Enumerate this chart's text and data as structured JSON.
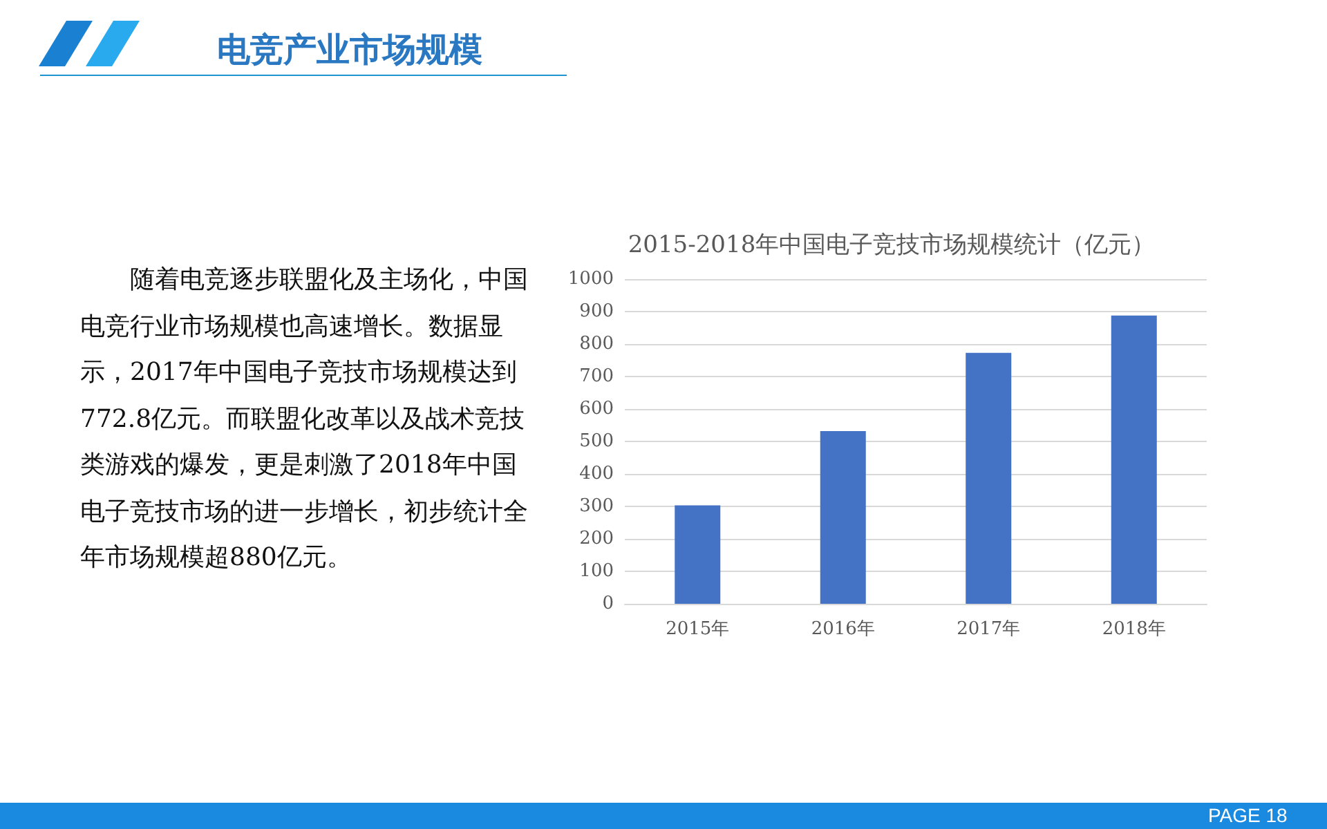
{
  "chart_data": {
    "type": "bar",
    "title": "2015-2018年中国电子竞技市场规模统计（亿元）",
    "categories": [
      "2015年",
      "2016年",
      "2017年",
      "2018年"
    ],
    "values": [
      303,
      532,
      773,
      888
    ],
    "color": "#4472c4",
    "ylim": [
      0,
      1000
    ],
    "yticks": [
      0,
      100,
      200,
      300,
      400,
      500,
      600,
      700,
      800,
      900,
      1000
    ],
    "grid": "y",
    "annotations": [
      "电竞产业市场规模",
      "随着电竞逐步联盟化及主场化，中国电竞行业市场规模也高速增长。数据显示，2017年中国电子竞技市场规模达到772.8亿元。而联盟化改革以及战术竞技类游戏的爆发，更是刺激了2018年中国电子竞技市场的进一步增长，初步统计全年市场规模超880亿元。",
      "PAGE 18"
    ]
  }
}
